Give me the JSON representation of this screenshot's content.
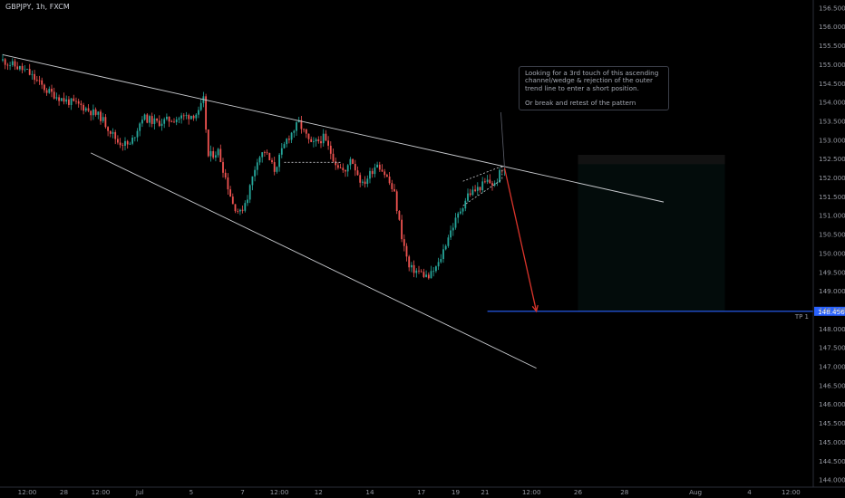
{
  "header": {
    "ticker": "GBPJPY, 1h, FXCM"
  },
  "annotation": {
    "lines": [
      "Looking for a 3rd touch of this ascending channel/wedge & rejection of the outer trend line to enter a short position.",
      "Or break and retest of the pattern"
    ]
  },
  "chart_data": {
    "type": "candlestick",
    "symbol": "GBPJPY",
    "interval": "1h",
    "x_ticks": [
      "12:00",
      "28",
      "12:00",
      "Jul",
      "5",
      "7",
      "12:00",
      "12",
      "14",
      "17",
      "19",
      "21",
      "12:00",
      "26",
      "28",
      "Aug",
      "4",
      "12:00"
    ],
    "y_ticks": [
      "156.500",
      "156.000",
      "155.500",
      "155.000",
      "154.500",
      "154.000",
      "153.500",
      "153.000",
      "152.500",
      "152.000",
      "151.500",
      "151.000",
      "150.500",
      "150.000",
      "149.500",
      "149.000",
      "148.500",
      "148.000",
      "147.500",
      "147.000",
      "146.500",
      "146.000",
      "145.500",
      "145.000",
      "144.500",
      "144.000"
    ],
    "ylim": [
      143.8,
      156.7
    ],
    "price_path": [
      [
        0,
        155.1
      ],
      [
        10,
        154.8
      ],
      [
        18,
        154.3
      ],
      [
        25,
        154.05
      ],
      [
        32,
        153.9
      ],
      [
        40,
        153.6
      ],
      [
        47,
        152.95
      ],
      [
        52,
        152.85
      ],
      [
        57,
        153.6
      ],
      [
        63,
        153.45
      ],
      [
        70,
        153.55
      ],
      [
        80,
        153.7
      ],
      [
        82,
        154.05
      ],
      [
        84,
        152.55
      ],
      [
        88,
        152.7
      ],
      [
        94,
        151.3
      ],
      [
        97,
        151.05
      ],
      [
        100,
        151.5
      ],
      [
        104,
        152.5
      ],
      [
        107,
        152.7
      ],
      [
        111,
        152.2
      ],
      [
        116,
        153.0
      ],
      [
        121,
        153.45
      ],
      [
        126,
        152.85
      ],
      [
        131,
        153.05
      ],
      [
        136,
        152.4
      ],
      [
        140,
        152.1
      ],
      [
        142,
        152.55
      ],
      [
        147,
        151.8
      ],
      [
        153,
        152.4
      ],
      [
        157,
        152.0
      ],
      [
        160,
        151.55
      ],
      [
        163,
        150.45
      ],
      [
        166,
        149.6
      ],
      [
        170,
        149.5
      ],
      [
        174,
        149.35
      ],
      [
        178,
        149.7
      ],
      [
        182,
        150.45
      ],
      [
        186,
        151.0
      ],
      [
        190,
        151.55
      ],
      [
        194,
        151.7
      ],
      [
        198,
        151.9
      ],
      [
        201,
        151.8
      ],
      [
        203,
        152.1
      ],
      [
        205,
        152.25
      ]
    ],
    "drawings": {
      "upper_trendline": {
        "x": [
          0,
          270
        ],
        "y": [
          155.25,
          151.35
        ]
      },
      "lower_trendline": {
        "x": [
          36,
          218
        ],
        "y": [
          152.65,
          146.95
        ]
      },
      "support_line": {
        "x": [
          115,
          138
        ],
        "y": [
          152.4,
          152.4
        ]
      },
      "wedge": {
        "upper": {
          "x": [
            188,
            204
          ],
          "y": [
            151.9,
            152.3
          ]
        },
        "lower": {
          "x": [
            188,
            204
          ],
          "y": [
            151.25,
            151.95
          ]
        }
      },
      "projection_arrow": {
        "x": [
          205,
          218
        ],
        "y": [
          152.25,
          148.456
        ]
      },
      "target_line": {
        "y": 148.456,
        "label": "TP 1",
        "price_label": "148.456"
      },
      "short_position": {
        "entry": 152.35,
        "stop": 152.6,
        "target": 148.456
      }
    },
    "colors": {
      "up": "#26a69a",
      "down": "#ef5350",
      "trendline": "#c9cbcf",
      "target": "#2962ff",
      "arrow": "#d9342b"
    },
    "grid": false,
    "price_scale": "right"
  }
}
